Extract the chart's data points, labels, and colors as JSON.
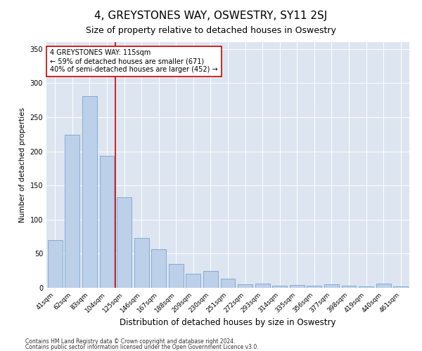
{
  "title": "4, GREYSTONES WAY, OSWESTRY, SY11 2SJ",
  "subtitle": "Size of property relative to detached houses in Oswestry",
  "xlabel": "Distribution of detached houses by size in Oswestry",
  "ylabel": "Number of detached properties",
  "categories": [
    "41sqm",
    "62sqm",
    "83sqm",
    "104sqm",
    "125sqm",
    "146sqm",
    "167sqm",
    "188sqm",
    "209sqm",
    "230sqm",
    "251sqm",
    "272sqm",
    "293sqm",
    "314sqm",
    "335sqm",
    "356sqm",
    "377sqm",
    "398sqm",
    "419sqm",
    "440sqm",
    "461sqm"
  ],
  "values": [
    70,
    224,
    281,
    193,
    133,
    73,
    57,
    35,
    21,
    25,
    13,
    5,
    6,
    3,
    4,
    3,
    5,
    3,
    2,
    6,
    2
  ],
  "bar_color": "#bdd0e9",
  "bar_edge_color": "#6699cc",
  "vline_x": 3.5,
  "vline_color": "#cc0000",
  "annotation_text": "4 GREYSTONES WAY: 115sqm\n← 59% of detached houses are smaller (671)\n40% of semi-detached houses are larger (452) →",
  "annotation_box_color": "#ffffff",
  "annotation_box_edge_color": "#cc0000",
  "ylim": [
    0,
    360
  ],
  "yticks": [
    0,
    50,
    100,
    150,
    200,
    250,
    300,
    350
  ],
  "background_color": "#dde5f0",
  "footer1": "Contains HM Land Registry data © Crown copyright and database right 2024.",
  "footer2": "Contains public sector information licensed under the Open Government Licence v3.0.",
  "title_fontsize": 11,
  "subtitle_fontsize": 9,
  "tick_fontsize": 6.5,
  "ylabel_fontsize": 7.5,
  "xlabel_fontsize": 8.5,
  "annotation_fontsize": 7,
  "footer_fontsize": 5.5
}
